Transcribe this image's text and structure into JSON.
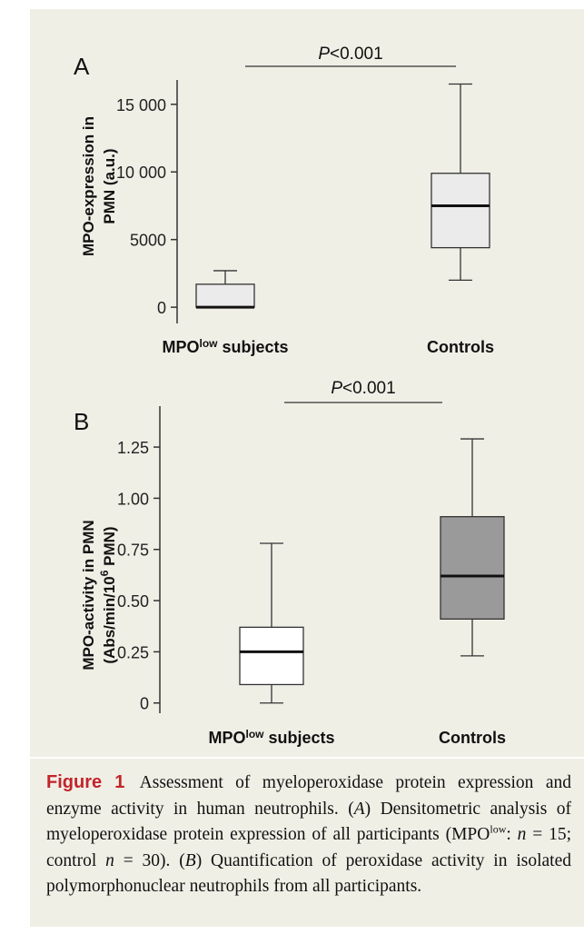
{
  "chart_data": [
    {
      "type": "box",
      "panel_label": "A",
      "ylabel_line1": "MPO-expression in",
      "ylabel_line2": "PMN (a.u.)",
      "categories": [
        {
          "name": "MPO",
          "sup": "low",
          "rest": " subjects"
        },
        {
          "name": "Controls",
          "sup": "",
          "rest": ""
        }
      ],
      "ylim": [
        -1200,
        16800
      ],
      "yticks": [
        0,
        5000,
        10000,
        15000
      ],
      "ytick_labels": [
        "0",
        "5000",
        "10 000",
        "15 000"
      ],
      "boxes": [
        {
          "min": 0,
          "q1": 0,
          "median": 0,
          "q3": 1700,
          "max": 2700,
          "fill": "#ebebeb"
        },
        {
          "min": 2000,
          "q1": 4400,
          "median": 7500,
          "q3": 9900,
          "max": 16500,
          "fill": "#ebebeb"
        }
      ],
      "significance": {
        "p_italic": "P",
        "p_rest": "<0.001"
      }
    },
    {
      "type": "box",
      "panel_label": "B",
      "ylabel_line1": "MPO-activity in PMN",
      "ylabel_line2_pre": "(Abs/min/10",
      "ylabel_line2_sup": "6",
      "ylabel_line2_post": " PMN)",
      "categories": [
        {
          "name": "MPO",
          "sup": "low",
          "rest": " subjects"
        },
        {
          "name": "Controls",
          "sup": "",
          "rest": ""
        }
      ],
      "ylim": [
        -0.05,
        1.45
      ],
      "yticks": [
        0,
        0.25,
        0.5,
        0.75,
        1.0,
        1.25
      ],
      "ytick_labels": [
        "0",
        "0.25",
        "0.50",
        "0.75",
        "1.00",
        "1.25"
      ],
      "boxes": [
        {
          "min": 0.0,
          "q1": 0.09,
          "median": 0.25,
          "q3": 0.37,
          "max": 0.78,
          "fill": "#ffffff"
        },
        {
          "min": 0.23,
          "q1": 0.41,
          "median": 0.62,
          "q3": 0.91,
          "max": 1.29,
          "fill": "#9a9a9a"
        }
      ],
      "significance": {
        "p_italic": "P",
        "p_rest": "<0.001"
      }
    }
  ],
  "caption": {
    "label": "Figure 1",
    "intro": "Assessment of myeloperoxidase protein expression and enzyme activity in human neutrophils. (",
    "a": "A",
    "after_a": ") Densitometric analysis of myeloperoxidase protein expression of all participants (MPO",
    "sup": "low",
    "after_sup": ": ",
    "n1": "n",
    "n1_val": " = 15; control ",
    "n2": "n",
    "n2_val": " = 30). (",
    "b": "B",
    "after_b": ") Quantification of peroxidase activity in isolated polymorphonuclear neutrophils from all participants."
  }
}
